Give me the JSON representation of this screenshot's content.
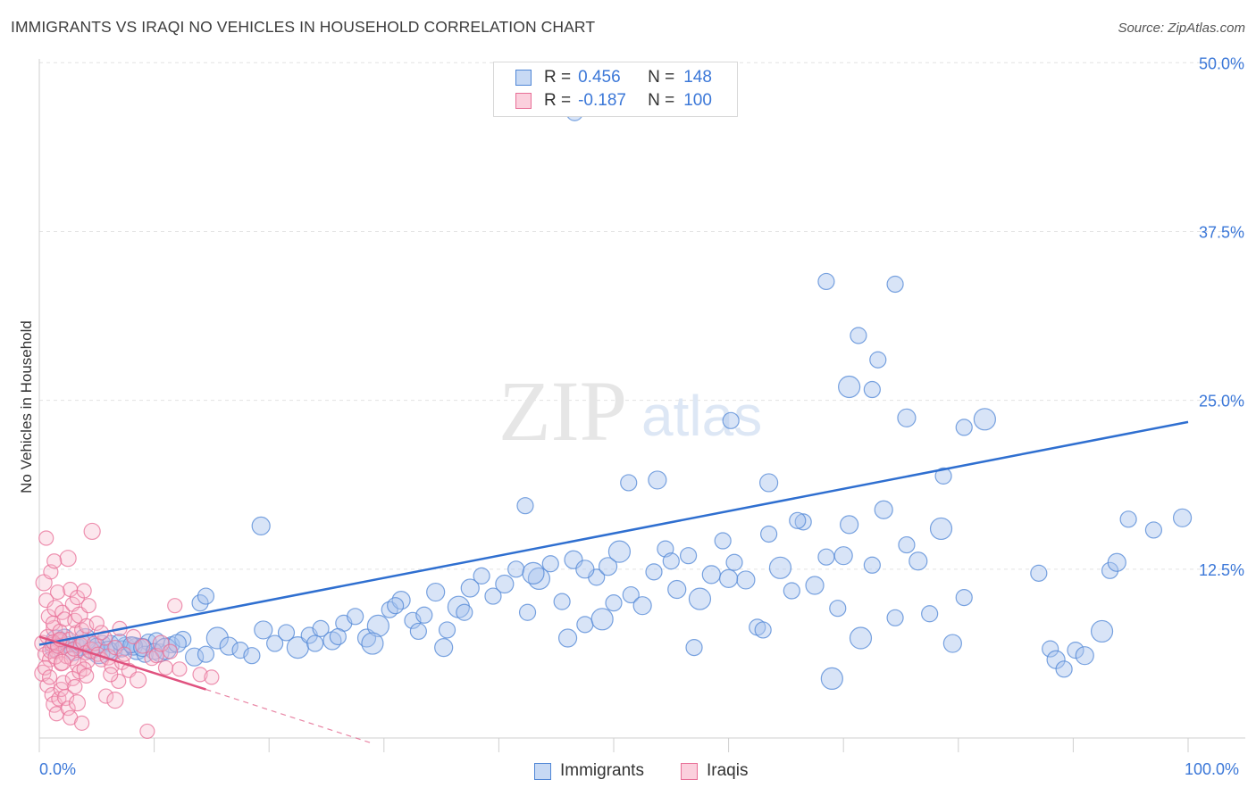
{
  "title": "IMMIGRANTS VS IRAQI NO VEHICLES IN HOUSEHOLD CORRELATION CHART",
  "source": "Source: ZipAtlas.com",
  "watermark": {
    "zip": "ZIP",
    "atlas": "atlas"
  },
  "colors": {
    "immigrants_fill": "#a9c4ee",
    "immigrants_stroke": "#4f86d6",
    "immigrants_line": "#2f6fd0",
    "iraqis_fill": "#f6b8ca",
    "iraqis_stroke": "#e86f97",
    "iraqis_line": "#e0527f",
    "axis_label": "#3c78d8",
    "grid": "#e3e3e3"
  },
  "legend": {
    "rows": [
      {
        "r_label": "R =",
        "r_value": "0.456",
        "n_label": "N =",
        "n_value": "148"
      },
      {
        "r_label": "R =",
        "r_value": "-0.187",
        "n_label": "N =",
        "n_value": "100"
      }
    ],
    "bottom": [
      "Immigrants",
      "Iraqis"
    ]
  },
  "chart_data": {
    "type": "scatter",
    "title": "IMMIGRANTS VS IRAQI NO VEHICLES IN HOUSEHOLD CORRELATION CHART",
    "xlabel": "",
    "ylabel": "No Vehicles in Household",
    "xlim": [
      0,
      100
    ],
    "ylim": [
      0,
      52
    ],
    "x_tick_labels": [
      "0.0%",
      "100.0%"
    ],
    "y_ticks": [
      12.5,
      25.0,
      37.5,
      50.0
    ],
    "y_tick_labels": [
      "12.5%",
      "25.0%",
      "37.5%",
      "50.0%"
    ],
    "grid": true,
    "legend_position": "top-center",
    "series": [
      {
        "name": "Immigrants",
        "r": 0.456,
        "n": 148,
        "trend": {
          "x": [
            0,
            100
          ],
          "y": [
            6.9,
            23.4
          ]
        },
        "points": [
          [
            1.5,
            7.2
          ],
          [
            2.5,
            6.9
          ],
          [
            3.5,
            6.7
          ],
          [
            4.5,
            6.5
          ],
          [
            5.5,
            7.0
          ],
          [
            6.5,
            6.4
          ],
          [
            7.5,
            6.8
          ],
          [
            8.5,
            6.6
          ],
          [
            9.5,
            7.1
          ],
          [
            10.5,
            6.3
          ],
          [
            11.5,
            6.9
          ],
          [
            12.5,
            7.3
          ],
          [
            13.5,
            6.0
          ],
          [
            14.5,
            6.2
          ],
          [
            15.5,
            7.4
          ],
          [
            16.5,
            6.8
          ],
          [
            17.5,
            6.5
          ],
          [
            18.5,
            6.1
          ],
          [
            19.5,
            8.0
          ],
          [
            20.5,
            7.0
          ],
          [
            21.5,
            7.8
          ],
          [
            22.5,
            6.7
          ],
          [
            23.5,
            7.6
          ],
          [
            24.5,
            8.1
          ],
          [
            25.5,
            7.2
          ],
          [
            26.5,
            8.5
          ],
          [
            27.5,
            9.0
          ],
          [
            28.5,
            7.4
          ],
          [
            29.5,
            8.3
          ],
          [
            30.5,
            9.5
          ],
          [
            31.5,
            10.2
          ],
          [
            32.5,
            8.7
          ],
          [
            33.5,
            9.1
          ],
          [
            34.5,
            10.8
          ],
          [
            35.5,
            8.0
          ],
          [
            36.5,
            9.7
          ],
          [
            37.5,
            11.1
          ],
          [
            38.5,
            12.0
          ],
          [
            39.5,
            10.5
          ],
          [
            40.5,
            11.4
          ],
          [
            41.5,
            12.5
          ],
          [
            42.5,
            9.3
          ],
          [
            43.5,
            11.8
          ],
          [
            44.5,
            12.9
          ],
          [
            45.5,
            10.1
          ],
          [
            46.5,
            13.2
          ],
          [
            47.5,
            8.4
          ],
          [
            48.5,
            11.9
          ],
          [
            49.5,
            12.7
          ],
          [
            50.5,
            13.8
          ],
          [
            51.5,
            10.6
          ],
          [
            52.5,
            9.8
          ],
          [
            53.5,
            12.3
          ],
          [
            54.5,
            14.0
          ],
          [
            55.5,
            11.0
          ],
          [
            56.5,
            13.5
          ],
          [
            57.5,
            10.3
          ],
          [
            58.5,
            12.1
          ],
          [
            59.5,
            14.6
          ],
          [
            60.5,
            13.0
          ],
          [
            61.5,
            11.7
          ],
          [
            62.5,
            8.2
          ],
          [
            63.5,
            15.1
          ],
          [
            64.5,
            12.6
          ],
          [
            65.5,
            10.9
          ],
          [
            66.5,
            16.0
          ],
          [
            67.5,
            11.3
          ],
          [
            68.5,
            13.4
          ],
          [
            69.5,
            9.6
          ],
          [
            70.5,
            15.8
          ],
          [
            71.5,
            7.4
          ],
          [
            72.5,
            12.8
          ],
          [
            73.5,
            16.9
          ],
          [
            74.5,
            8.9
          ],
          [
            75.5,
            14.3
          ],
          [
            76.5,
            13.1
          ],
          [
            77.5,
            9.2
          ],
          [
            78.5,
            15.5
          ],
          [
            79.5,
            7.0
          ],
          [
            80.5,
            10.4
          ],
          [
            1.2,
            6.6
          ],
          [
            2.2,
            7.4
          ],
          [
            3.2,
            6.9
          ],
          [
            4.2,
            7.1
          ],
          [
            5.2,
            6.3
          ],
          [
            6.2,
            7.0
          ],
          [
            7.2,
            6.6
          ],
          [
            8.2,
            6.8
          ],
          [
            9.2,
            6.2
          ],
          [
            10.2,
            7.2
          ],
          [
            3.0,
            6.4
          ],
          [
            4.0,
            7.3
          ],
          [
            5.0,
            6.8
          ],
          [
            6.0,
            6.5
          ],
          [
            7.0,
            7.1
          ],
          [
            8.0,
            6.9
          ],
          [
            9.0,
            6.7
          ],
          [
            10.0,
            6.4
          ],
          [
            11.0,
            6.6
          ],
          [
            12.0,
            7.0
          ],
          [
            14.0,
            10.0
          ],
          [
            14.5,
            10.5
          ],
          [
            19.3,
            15.7
          ],
          [
            24.0,
            7.0
          ],
          [
            26.0,
            7.5
          ],
          [
            29.0,
            7.0
          ],
          [
            31.0,
            9.8
          ],
          [
            33.0,
            7.9
          ],
          [
            35.2,
            6.7
          ],
          [
            37.0,
            9.3
          ],
          [
            42.3,
            17.2
          ],
          [
            46.0,
            7.4
          ],
          [
            49.0,
            8.8
          ],
          [
            51.3,
            18.9
          ],
          [
            53.8,
            19.1
          ],
          [
            57.0,
            6.7
          ],
          [
            60.2,
            23.5
          ],
          [
            63.5,
            18.9
          ],
          [
            66.0,
            16.1
          ],
          [
            69.0,
            4.4
          ],
          [
            70.0,
            13.5
          ],
          [
            71.3,
            29.8
          ],
          [
            73.0,
            28.0
          ],
          [
            75.5,
            23.7
          ],
          [
            78.7,
            19.4
          ],
          [
            80.5,
            23.0
          ],
          [
            82.3,
            23.6
          ],
          [
            87.0,
            12.2
          ],
          [
            88.0,
            6.6
          ],
          [
            88.5,
            5.8
          ],
          [
            89.2,
            5.1
          ],
          [
            90.2,
            6.5
          ],
          [
            91.0,
            6.1
          ],
          [
            92.5,
            7.9
          ],
          [
            93.2,
            12.4
          ],
          [
            93.8,
            13.0
          ],
          [
            94.8,
            16.2
          ],
          [
            97.0,
            15.4
          ],
          [
            99.5,
            16.3
          ],
          [
            46.6,
            46.3
          ],
          [
            43.0,
            12.2
          ],
          [
            47.5,
            12.5
          ],
          [
            50.0,
            10.0
          ],
          [
            55.0,
            13.1
          ],
          [
            60.0,
            11.8
          ],
          [
            63.0,
            8.0
          ],
          [
            68.5,
            33.8
          ],
          [
            70.5,
            26.0
          ],
          [
            72.5,
            25.8
          ],
          [
            74.5,
            33.6
          ]
        ]
      },
      {
        "name": "Iraqis",
        "r": -0.187,
        "n": 100,
        "trend": {
          "x": [
            0,
            14.5
          ],
          "y": [
            7.5,
            3.6
          ]
        },
        "trend_extension": {
          "x": [
            14.5,
            29
          ],
          "y": [
            3.6,
            -0.4
          ]
        },
        "points": [
          [
            0.3,
            7.0
          ],
          [
            0.5,
            6.2
          ],
          [
            0.7,
            7.5
          ],
          [
            0.9,
            5.8
          ],
          [
            1.1,
            6.9
          ],
          [
            1.3,
            8.1
          ],
          [
            1.5,
            6.4
          ],
          [
            1.7,
            7.2
          ],
          [
            1.9,
            5.5
          ],
          [
            2.1,
            6.8
          ],
          [
            0.4,
            11.5
          ],
          [
            0.6,
            10.2
          ],
          [
            0.8,
            9.0
          ],
          [
            1.0,
            12.3
          ],
          [
            1.2,
            8.5
          ],
          [
            1.4,
            9.6
          ],
          [
            1.6,
            10.8
          ],
          [
            1.8,
            7.9
          ],
          [
            2.0,
            9.3
          ],
          [
            2.2,
            8.8
          ],
          [
            0.3,
            4.8
          ],
          [
            0.5,
            5.2
          ],
          [
            0.7,
            3.9
          ],
          [
            0.9,
            4.5
          ],
          [
            1.1,
            3.2
          ],
          [
            1.3,
            2.5
          ],
          [
            1.5,
            1.8
          ],
          [
            1.7,
            2.9
          ],
          [
            1.9,
            3.6
          ],
          [
            2.1,
            4.1
          ],
          [
            2.4,
            6.1
          ],
          [
            2.6,
            7.3
          ],
          [
            2.8,
            5.9
          ],
          [
            3.0,
            6.6
          ],
          [
            3.2,
            7.8
          ],
          [
            3.4,
            5.4
          ],
          [
            3.6,
            6.9
          ],
          [
            3.8,
            7.1
          ],
          [
            4.0,
            6.3
          ],
          [
            4.2,
            5.7
          ],
          [
            2.5,
            13.3
          ],
          [
            2.7,
            11.0
          ],
          [
            2.9,
            9.9
          ],
          [
            3.1,
            8.7
          ],
          [
            3.3,
            10.4
          ],
          [
            3.5,
            9.1
          ],
          [
            3.7,
            8.0
          ],
          [
            3.9,
            10.9
          ],
          [
            4.1,
            8.3
          ],
          [
            4.3,
            9.8
          ],
          [
            2.3,
            3.0
          ],
          [
            2.5,
            2.2
          ],
          [
            2.7,
            1.5
          ],
          [
            2.9,
            4.4
          ],
          [
            3.1,
            3.8
          ],
          [
            3.3,
            2.6
          ],
          [
            3.5,
            4.9
          ],
          [
            3.7,
            1.1
          ],
          [
            3.9,
            5.1
          ],
          [
            4.1,
            4.6
          ],
          [
            4.5,
            6.5
          ],
          [
            4.8,
            7.0
          ],
          [
            5.1,
            6.2
          ],
          [
            5.4,
            5.8
          ],
          [
            5.7,
            7.4
          ],
          [
            6.0,
            6.0
          ],
          [
            6.3,
            5.3
          ],
          [
            6.6,
            6.7
          ],
          [
            6.9,
            4.2
          ],
          [
            7.2,
            5.6
          ],
          [
            4.6,
            15.3
          ],
          [
            5.0,
            8.5
          ],
          [
            5.4,
            7.8
          ],
          [
            5.8,
            3.1
          ],
          [
            6.2,
            4.7
          ],
          [
            6.6,
            2.8
          ],
          [
            7.0,
            8.1
          ],
          [
            7.4,
            6.2
          ],
          [
            7.8,
            5.0
          ],
          [
            8.2,
            7.5
          ],
          [
            8.6,
            4.3
          ],
          [
            9.0,
            6.8
          ],
          [
            9.4,
            0.5
          ],
          [
            9.8,
            5.9
          ],
          [
            10.2,
            6.1
          ],
          [
            10.6,
            7.0
          ],
          [
            11.0,
            5.2
          ],
          [
            11.4,
            6.4
          ],
          [
            11.8,
            9.8
          ],
          [
            12.2,
            5.1
          ],
          [
            1.0,
            6.5
          ],
          [
            1.2,
            7.1
          ],
          [
            1.4,
            6.0
          ],
          [
            1.6,
            6.8
          ],
          [
            1.8,
            7.3
          ],
          [
            2.0,
            5.6
          ],
          [
            0.6,
            14.8
          ],
          [
            1.3,
            13.1
          ],
          [
            14.0,
            4.7
          ],
          [
            15.0,
            4.5
          ]
        ]
      }
    ]
  }
}
